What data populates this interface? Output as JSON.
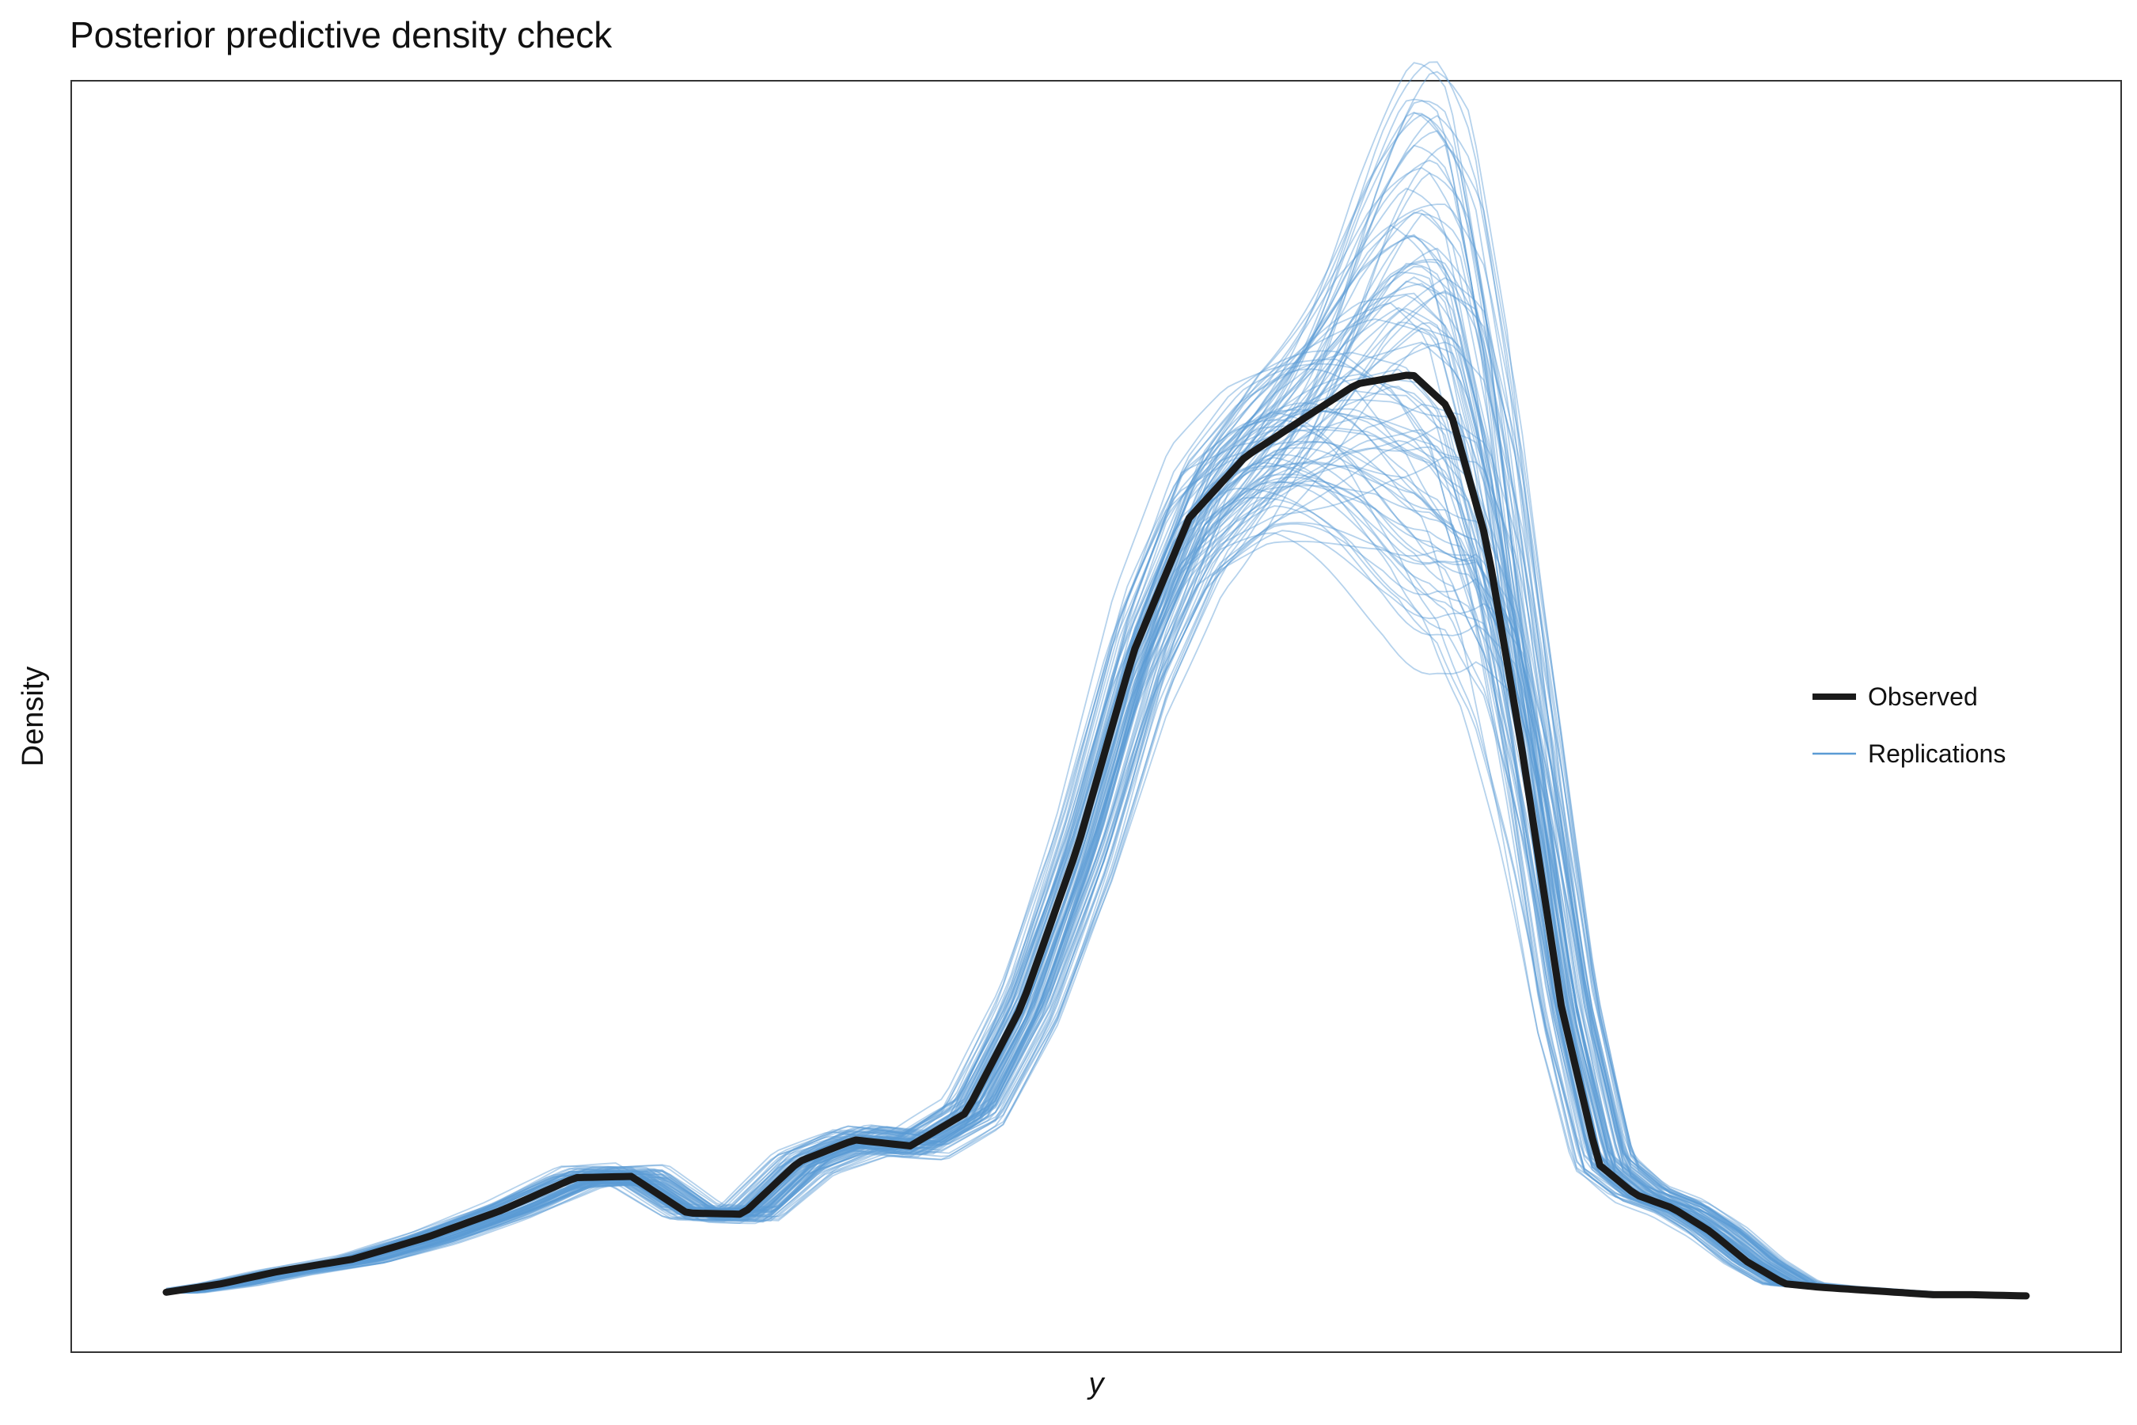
{
  "chart_data": {
    "type": "line",
    "title": "Posterior predictive density check",
    "xlabel": "y",
    "ylabel": "Density",
    "grid": false,
    "legend_position": "right-center",
    "xlim": [
      0,
      1
    ],
    "ylim": [
      0,
      1
    ],
    "colors": {
      "observed": "#1a1a1a",
      "replications": "#5b9bd5",
      "frame": "#333333",
      "text": "#111111"
    },
    "observed": {
      "name": "Observed",
      "x": [
        0.0,
        0.03,
        0.06,
        0.1,
        0.14,
        0.18,
        0.22,
        0.25,
        0.28,
        0.31,
        0.34,
        0.37,
        0.4,
        0.43,
        0.46,
        0.49,
        0.52,
        0.55,
        0.58,
        0.61,
        0.64,
        0.67,
        0.69,
        0.71,
        0.73,
        0.75,
        0.77,
        0.79,
        0.81,
        0.83,
        0.85,
        0.87,
        0.89,
        0.91,
        0.93,
        0.95,
        0.97,
        1.0
      ],
      "y": [
        0.005,
        0.012,
        0.022,
        0.032,
        0.05,
        0.072,
        0.099,
        0.1,
        0.07,
        0.069,
        0.112,
        0.13,
        0.125,
        0.152,
        0.24,
        0.37,
        0.53,
        0.64,
        0.69,
        0.72,
        0.75,
        0.758,
        0.73,
        0.62,
        0.44,
        0.24,
        0.11,
        0.085,
        0.074,
        0.055,
        0.03,
        0.012,
        0.009,
        0.007,
        0.005,
        0.003,
        0.003,
        0.002
      ]
    },
    "replications": {
      "name": "Replications",
      "count": 100
    }
  }
}
